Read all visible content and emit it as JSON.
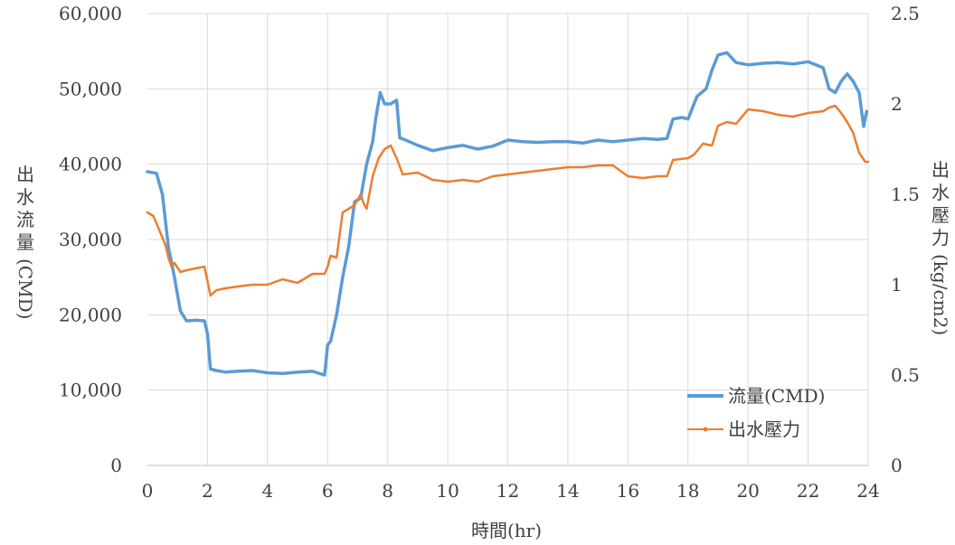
{
  "chart_data": {
    "type": "line",
    "xlabel": "時間(hr)",
    "ylabel_left": "出水流量(CMD)",
    "ylabel_right": "出水壓力(kg/cm2)",
    "xlim": [
      0,
      24
    ],
    "ylim_left": [
      0,
      60000
    ],
    "ylim_right": [
      0,
      2.5
    ],
    "x_ticks": [
      "0",
      "2",
      "4",
      "6",
      "8",
      "10",
      "12",
      "14",
      "16",
      "18",
      "20",
      "22",
      "24"
    ],
    "y_left_ticks": [
      "0",
      "10,000",
      "20,000",
      "30,000",
      "40,000",
      "50,000",
      "60,000"
    ],
    "y_right_ticks": [
      "0",
      "0.5",
      "1",
      "1.5",
      "2",
      "2.5"
    ],
    "grid": true,
    "legend_position": "bottom-right",
    "series": [
      {
        "name": "流量(CMD)",
        "axis": "left",
        "color": "#5b9bd5",
        "x": [
          0,
          0.3,
          0.5,
          0.7,
          0.9,
          1.1,
          1.3,
          1.6,
          1.9,
          2.0,
          2.1,
          2.3,
          2.6,
          3.0,
          3.5,
          4.0,
          4.5,
          5.0,
          5.5,
          5.9,
          6.0,
          6.1,
          6.3,
          6.5,
          6.7,
          6.9,
          7.1,
          7.3,
          7.5,
          7.6,
          7.75,
          7.9,
          8.1,
          8.3,
          8.4,
          8.6,
          9.0,
          9.5,
          10.0,
          10.5,
          11.0,
          11.5,
          12.0,
          12.5,
          13.0,
          13.5,
          14.0,
          14.5,
          15.0,
          15.5,
          16.0,
          16.5,
          17.0,
          17.3,
          17.5,
          17.8,
          18.0,
          18.3,
          18.6,
          18.8,
          19.0,
          19.3,
          19.6,
          20.0,
          20.5,
          21.0,
          21.5,
          22.0,
          22.5,
          22.7,
          22.9,
          23.1,
          23.3,
          23.5,
          23.7,
          23.85,
          23.95
        ],
        "values": [
          39000,
          38800,
          36000,
          29000,
          25000,
          20500,
          19200,
          19300,
          19200,
          17500,
          12800,
          12600,
          12400,
          12500,
          12600,
          12300,
          12200,
          12400,
          12500,
          12000,
          16000,
          16500,
          20000,
          25000,
          29000,
          35000,
          35500,
          40000,
          43000,
          46000,
          49500,
          48000,
          48000,
          48500,
          43500,
          43200,
          42500,
          41800,
          42200,
          42500,
          42000,
          42400,
          43200,
          43000,
          42900,
          43000,
          43000,
          42800,
          43200,
          43000,
          43200,
          43400,
          43300,
          43400,
          46000,
          46200,
          46000,
          49000,
          50000,
          52500,
          54500,
          54800,
          53500,
          53200,
          53400,
          53500,
          53300,
          53600,
          52800,
          50000,
          49500,
          51000,
          52000,
          51000,
          49500,
          45000,
          47000
        ]
      },
      {
        "name": "出水壓力",
        "axis": "right",
        "color": "#ed7d31",
        "x": [
          0,
          0.2,
          0.4,
          0.6,
          0.7,
          0.8,
          0.9,
          1.1,
          1.3,
          1.6,
          1.9,
          2.0,
          2.1,
          2.3,
          2.6,
          3.0,
          3.5,
          4.0,
          4.5,
          5.0,
          5.5,
          5.9,
          6.0,
          6.1,
          6.3,
          6.5,
          6.7,
          6.9,
          7.1,
          7.2,
          7.3,
          7.5,
          7.7,
          7.9,
          8.1,
          8.3,
          8.5,
          9.0,
          9.5,
          10.0,
          10.5,
          11.0,
          11.5,
          12.0,
          12.5,
          13.0,
          13.5,
          14.0,
          14.5,
          15.0,
          15.5,
          16.0,
          16.5,
          17.0,
          17.3,
          17.5,
          18.0,
          18.2,
          18.5,
          18.8,
          19.0,
          19.3,
          19.6,
          20.0,
          20.5,
          21.0,
          21.5,
          22.0,
          22.5,
          22.7,
          22.9,
          23.1,
          23.3,
          23.5,
          23.7,
          23.9,
          24.0
        ],
        "values": [
          1.4,
          1.38,
          1.3,
          1.22,
          1.15,
          1.1,
          1.12,
          1.07,
          1.08,
          1.09,
          1.1,
          1.02,
          0.94,
          0.97,
          0.98,
          0.99,
          1.0,
          1.0,
          1.03,
          1.01,
          1.06,
          1.06,
          1.1,
          1.16,
          1.15,
          1.4,
          1.42,
          1.44,
          1.5,
          1.45,
          1.42,
          1.6,
          1.7,
          1.75,
          1.77,
          1.7,
          1.61,
          1.62,
          1.58,
          1.57,
          1.58,
          1.57,
          1.6,
          1.61,
          1.62,
          1.63,
          1.64,
          1.65,
          1.65,
          1.66,
          1.66,
          1.6,
          1.59,
          1.6,
          1.6,
          1.69,
          1.7,
          1.72,
          1.78,
          1.77,
          1.88,
          1.9,
          1.89,
          1.97,
          1.96,
          1.94,
          1.93,
          1.95,
          1.96,
          1.98,
          1.99,
          1.95,
          1.9,
          1.84,
          1.73,
          1.68,
          1.68
        ]
      }
    ]
  }
}
